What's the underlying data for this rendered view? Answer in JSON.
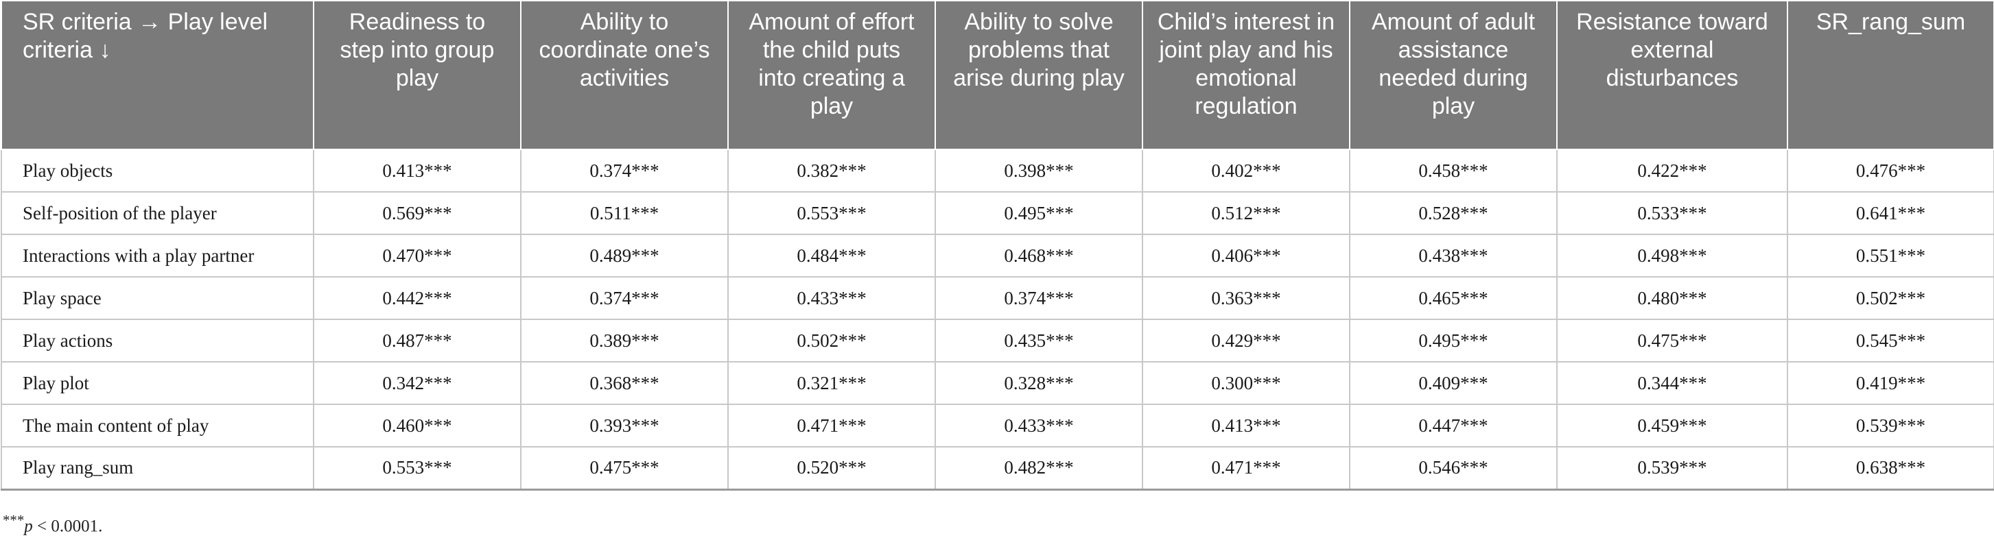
{
  "table": {
    "corner_header": "SR criteria → Play level criteria ↓",
    "columns": [
      "Readiness to step into group play",
      "Ability to coordinate one’s activities",
      "Amount of effort the child puts into creating a play",
      "Ability to solve problems that arise during play",
      "Child’s interest in joint play and his emotional regulation",
      "Amount of adult assistance needed during play",
      "Resistance toward external disturbances",
      "SR_rang_sum"
    ],
    "rows": [
      {
        "label": "Play objects",
        "values": [
          "0.413***",
          "0.374***",
          "0.382***",
          "0.398***",
          "0.402***",
          "0.458***",
          "0.422***",
          "0.476***"
        ]
      },
      {
        "label": "Self-position of the player",
        "values": [
          "0.569***",
          "0.511***",
          "0.553***",
          "0.495***",
          "0.512***",
          "0.528***",
          "0.533***",
          "0.641***"
        ]
      },
      {
        "label": "Interactions with a play partner",
        "values": [
          "0.470***",
          "0.489***",
          "0.484***",
          "0.468***",
          "0.406***",
          "0.438***",
          "0.498***",
          "0.551***"
        ]
      },
      {
        "label": "Play space",
        "values": [
          "0.442***",
          "0.374***",
          "0.433***",
          "0.374***",
          "0.363***",
          "0.465***",
          "0.480***",
          "0.502***"
        ]
      },
      {
        "label": "Play actions",
        "values": [
          "0.487***",
          "0.389***",
          "0.502***",
          "0.435***",
          "0.429***",
          "0.495***",
          "0.475***",
          "0.545***"
        ]
      },
      {
        "label": "Play plot",
        "values": [
          "0.342***",
          "0.368***",
          "0.321***",
          "0.328***",
          "0.300***",
          "0.409***",
          "0.344***",
          "0.419***"
        ]
      },
      {
        "label": "The main content of play",
        "values": [
          "0.460***",
          "0.393***",
          "0.471***",
          "0.433***",
          "0.413***",
          "0.447***",
          "0.459***",
          "0.539***"
        ]
      },
      {
        "label": "Play rang_sum",
        "values": [
          "0.553***",
          "0.475***",
          "0.520***",
          "0.482***",
          "0.471***",
          "0.546***",
          "0.539***",
          "0.638***"
        ]
      }
    ]
  },
  "footnote": {
    "marker": "***",
    "symbol": "p",
    "text": " < 0.0001."
  }
}
